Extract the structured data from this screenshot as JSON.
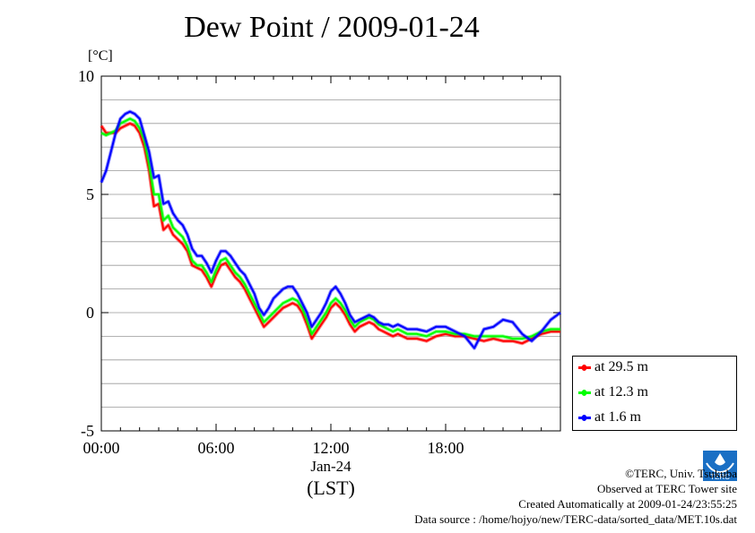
{
  "header": {
    "title": "Dew Point / 2009-01-24",
    "unit_label": "[°C]"
  },
  "chart_data": {
    "type": "line",
    "title": "Dew Point / 2009-01-24",
    "ylabel": "[°C]",
    "xlabel": "(LST)",
    "x_date_label": "Jan-24",
    "ylim": [
      -5,
      10
    ],
    "xlim": [
      0,
      24
    ],
    "y_ticks": [
      {
        "value": -5,
        "label": "-5"
      },
      {
        "value": 0,
        "label": "0"
      },
      {
        "value": 5,
        "label": "5"
      },
      {
        "value": 10,
        "label": "10"
      }
    ],
    "x_ticks": [
      {
        "value": 0,
        "label": "00:00"
      },
      {
        "value": 6,
        "label": "06:00"
      },
      {
        "value": 12,
        "label": "12:00"
      },
      {
        "value": 18,
        "label": "18:00"
      }
    ],
    "grid": true,
    "legend_position": "bottom-right-outside",
    "series": [
      {
        "name": "at 29.5 m",
        "color": "#ff0000",
        "x": [
          0.0,
          0.25,
          0.5,
          0.75,
          1.0,
          1.25,
          1.5,
          1.75,
          2.0,
          2.25,
          2.5,
          2.75,
          3.0,
          3.25,
          3.5,
          3.75,
          4.0,
          4.25,
          4.5,
          4.75,
          5.0,
          5.25,
          5.5,
          5.75,
          6.0,
          6.25,
          6.5,
          6.75,
          7.0,
          7.25,
          7.5,
          7.75,
          8.0,
          8.25,
          8.5,
          8.75,
          9.0,
          9.25,
          9.5,
          9.75,
          10.0,
          10.25,
          10.5,
          10.75,
          11.0,
          11.25,
          11.5,
          11.75,
          12.0,
          12.25,
          12.5,
          12.75,
          13.0,
          13.25,
          13.5,
          13.75,
          14.0,
          14.25,
          14.5,
          14.75,
          15.0,
          15.25,
          15.5,
          15.75,
          16.0,
          16.5,
          17.0,
          17.5,
          18.0,
          18.5,
          19.0,
          19.5,
          20.0,
          20.5,
          21.0,
          21.5,
          22.0,
          22.5,
          23.0,
          23.5,
          24.0
        ],
        "values": [
          7.9,
          7.6,
          7.6,
          7.6,
          7.8,
          7.9,
          8.0,
          7.9,
          7.6,
          7.0,
          6.0,
          4.5,
          4.6,
          3.5,
          3.7,
          3.3,
          3.1,
          2.9,
          2.6,
          2.0,
          1.9,
          1.8,
          1.5,
          1.1,
          1.6,
          2.0,
          2.1,
          1.8,
          1.5,
          1.3,
          1.0,
          0.6,
          0.2,
          -0.2,
          -0.6,
          -0.4,
          -0.2,
          0.0,
          0.2,
          0.3,
          0.4,
          0.3,
          0.0,
          -0.5,
          -1.1,
          -0.8,
          -0.5,
          -0.2,
          0.2,
          0.4,
          0.2,
          -0.1,
          -0.5,
          -0.8,
          -0.6,
          -0.5,
          -0.4,
          -0.5,
          -0.7,
          -0.8,
          -0.9,
          -1.0,
          -0.9,
          -1.0,
          -1.1,
          -1.1,
          -1.2,
          -1.0,
          -0.9,
          -1.0,
          -1.0,
          -1.1,
          -1.2,
          -1.1,
          -1.2,
          -1.2,
          -1.3,
          -1.1,
          -0.9,
          -0.8,
          -0.8
        ]
      },
      {
        "name": "at 12.3 m",
        "color": "#00ff00",
        "x": [
          0.0,
          0.25,
          0.5,
          0.75,
          1.0,
          1.25,
          1.5,
          1.75,
          2.0,
          2.25,
          2.5,
          2.75,
          3.0,
          3.25,
          3.5,
          3.75,
          4.0,
          4.25,
          4.5,
          4.75,
          5.0,
          5.25,
          5.5,
          5.75,
          6.0,
          6.25,
          6.5,
          6.75,
          7.0,
          7.25,
          7.5,
          7.75,
          8.0,
          8.25,
          8.5,
          8.75,
          9.0,
          9.25,
          9.5,
          9.75,
          10.0,
          10.25,
          10.5,
          10.75,
          11.0,
          11.25,
          11.5,
          11.75,
          12.0,
          12.25,
          12.5,
          12.75,
          13.0,
          13.25,
          13.5,
          13.75,
          14.0,
          14.25,
          14.5,
          14.75,
          15.0,
          15.25,
          15.5,
          15.75,
          16.0,
          16.5,
          17.0,
          17.5,
          18.0,
          18.5,
          19.0,
          19.5,
          20.0,
          20.5,
          21.0,
          21.5,
          22.0,
          22.5,
          23.0,
          23.5,
          24.0
        ],
        "values": [
          7.6,
          7.5,
          7.6,
          7.7,
          8.0,
          8.1,
          8.2,
          8.1,
          7.8,
          7.3,
          6.3,
          5.0,
          5.0,
          3.9,
          4.1,
          3.6,
          3.4,
          3.2,
          2.8,
          2.2,
          2.0,
          2.0,
          1.7,
          1.3,
          1.8,
          2.2,
          2.3,
          2.0,
          1.7,
          1.5,
          1.2,
          0.8,
          0.4,
          0.0,
          -0.4,
          -0.2,
          0.0,
          0.2,
          0.4,
          0.5,
          0.6,
          0.5,
          0.2,
          -0.3,
          -0.9,
          -0.6,
          -0.3,
          0.0,
          0.4,
          0.6,
          0.4,
          0.1,
          -0.3,
          -0.6,
          -0.4,
          -0.3,
          -0.2,
          -0.3,
          -0.5,
          -0.6,
          -0.7,
          -0.8,
          -0.7,
          -0.8,
          -0.9,
          -0.9,
          -1.0,
          -0.8,
          -0.8,
          -0.9,
          -0.9,
          -1.0,
          -1.0,
          -1.0,
          -1.0,
          -1.1,
          -1.1,
          -1.0,
          -0.8,
          -0.7,
          -0.7
        ]
      },
      {
        "name": "at 1.6 m",
        "color": "#0000ff",
        "x": [
          0.0,
          0.25,
          0.5,
          0.75,
          1.0,
          1.25,
          1.5,
          1.75,
          2.0,
          2.25,
          2.5,
          2.75,
          3.0,
          3.25,
          3.5,
          3.75,
          4.0,
          4.25,
          4.5,
          4.75,
          5.0,
          5.25,
          5.5,
          5.75,
          6.0,
          6.25,
          6.5,
          6.75,
          7.0,
          7.25,
          7.5,
          7.75,
          8.0,
          8.25,
          8.5,
          8.75,
          9.0,
          9.25,
          9.5,
          9.75,
          10.0,
          10.25,
          10.5,
          10.75,
          11.0,
          11.25,
          11.5,
          11.75,
          12.0,
          12.25,
          12.5,
          12.75,
          13.0,
          13.25,
          13.5,
          13.75,
          14.0,
          14.25,
          14.5,
          14.75,
          15.0,
          15.25,
          15.5,
          15.75,
          16.0,
          16.5,
          17.0,
          17.5,
          18.0,
          18.5,
          19.0,
          19.5,
          20.0,
          20.5,
          21.0,
          21.5,
          22.0,
          22.5,
          23.0,
          23.5,
          24.0
        ],
        "values": [
          5.5,
          6.0,
          6.8,
          7.6,
          8.2,
          8.4,
          8.5,
          8.4,
          8.2,
          7.5,
          6.8,
          5.7,
          5.8,
          4.6,
          4.7,
          4.2,
          3.9,
          3.7,
          3.3,
          2.7,
          2.4,
          2.4,
          2.1,
          1.7,
          2.2,
          2.6,
          2.6,
          2.4,
          2.1,
          1.8,
          1.6,
          1.2,
          0.8,
          0.2,
          -0.1,
          0.2,
          0.6,
          0.8,
          1.0,
          1.1,
          1.1,
          0.8,
          0.4,
          0.0,
          -0.6,
          -0.3,
          0.0,
          0.4,
          0.9,
          1.1,
          0.8,
          0.4,
          -0.1,
          -0.4,
          -0.3,
          -0.2,
          -0.1,
          -0.2,
          -0.4,
          -0.5,
          -0.5,
          -0.6,
          -0.5,
          -0.6,
          -0.7,
          -0.7,
          -0.8,
          -0.6,
          -0.6,
          -0.8,
          -1.0,
          -1.5,
          -0.7,
          -0.6,
          -0.3,
          -0.4,
          -0.9,
          -1.2,
          -0.8,
          -0.3,
          0.0
        ]
      }
    ]
  },
  "footer": {
    "copyright": "©TERC, Univ. Tsukuba",
    "observed": "Observed at TERC Tower site",
    "created": "Created Automatically at 2009-01-24/23:55:25",
    "source": "Data source : /home/hojyo/new/TERC-data/sorted_data/MET.10s.dat",
    "logo_text": "TERC"
  }
}
